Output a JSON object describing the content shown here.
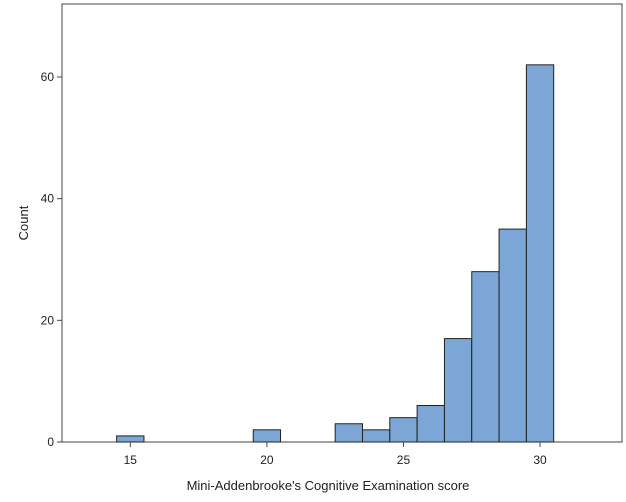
{
  "chart_data": {
    "type": "bar",
    "subtype": "histogram",
    "xlabel": "Mini-Addenbrooke's Cognitive Examination score",
    "ylabel": "Count",
    "xlim": [
      12.5,
      33
    ],
    "ylim": [
      0,
      72
    ],
    "x_ticks": [
      15,
      20,
      25,
      30
    ],
    "y_ticks": [
      0,
      20,
      40,
      60
    ],
    "bins": [
      {
        "x0": 14.5,
        "x1": 15.5,
        "count": 1
      },
      {
        "x0": 19.5,
        "x1": 20.5,
        "count": 2
      },
      {
        "x0": 22.5,
        "x1": 23.5,
        "count": 3
      },
      {
        "x0": 23.5,
        "x1": 24.5,
        "count": 2
      },
      {
        "x0": 24.5,
        "x1": 25.5,
        "count": 4
      },
      {
        "x0": 25.5,
        "x1": 26.5,
        "count": 6
      },
      {
        "x0": 26.5,
        "x1": 27.5,
        "count": 17
      },
      {
        "x0": 27.5,
        "x1": 28.5,
        "count": 28
      },
      {
        "x0": 28.5,
        "x1": 29.5,
        "count": 35
      },
      {
        "x0": 29.5,
        "x1": 30.5,
        "count": 62
      }
    ],
    "bar_color": "#7ba6d6",
    "bar_edge_color": "#222222",
    "grid": false,
    "legend": false
  }
}
